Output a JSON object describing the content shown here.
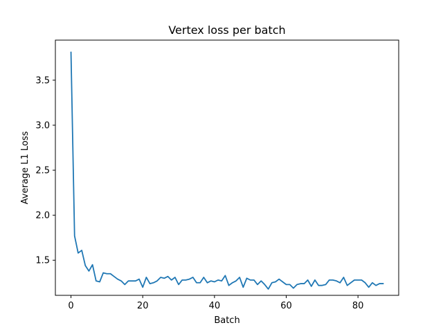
{
  "chart_data": {
    "type": "line",
    "title": "Vertex loss per batch",
    "xlabel": "Batch",
    "ylabel": "Average L1 Loss",
    "xlim": [
      -4.35,
      91.35
    ],
    "ylim": [
      1.11,
      3.945
    ],
    "xticks": [
      0,
      20,
      40,
      60,
      80
    ],
    "yticks": [
      1.5,
      2.0,
      2.5,
      3.0,
      3.5
    ],
    "xtick_labels": [
      "0",
      "20",
      "40",
      "60",
      "80"
    ],
    "ytick_labels": [
      "1.5",
      "2.0",
      "2.5",
      "3.0",
      "3.5"
    ],
    "grid": false,
    "legend": "none",
    "color": "#1f77b4",
    "series": [
      {
        "x": [
          0,
          1,
          2,
          3,
          4,
          5,
          6,
          7,
          8,
          9,
          10,
          11,
          12,
          13,
          14,
          15,
          16,
          17,
          18,
          19,
          20,
          21,
          22,
          23,
          24,
          25,
          26,
          27,
          28,
          29,
          30,
          31,
          32,
          33,
          34,
          35,
          36,
          37,
          38,
          39,
          40,
          41,
          42,
          43,
          44,
          45,
          46,
          47,
          48,
          49,
          50,
          51,
          52,
          53,
          54,
          55,
          56,
          57,
          58,
          59,
          60,
          61,
          62,
          63,
          64,
          65,
          66,
          67,
          68,
          69,
          70,
          71,
          72,
          73,
          74,
          75,
          76,
          77,
          78,
          79,
          80,
          81,
          82,
          83,
          84,
          85,
          86,
          87
        ],
        "values": [
          3.81,
          1.77,
          1.58,
          1.61,
          1.44,
          1.38,
          1.45,
          1.27,
          1.26,
          1.36,
          1.35,
          1.35,
          1.32,
          1.29,
          1.27,
          1.23,
          1.27,
          1.27,
          1.27,
          1.29,
          1.2,
          1.31,
          1.24,
          1.25,
          1.27,
          1.31,
          1.3,
          1.32,
          1.28,
          1.31,
          1.23,
          1.28,
          1.28,
          1.29,
          1.31,
          1.25,
          1.25,
          1.31,
          1.25,
          1.27,
          1.26,
          1.28,
          1.27,
          1.33,
          1.22,
          1.25,
          1.27,
          1.31,
          1.2,
          1.3,
          1.28,
          1.28,
          1.23,
          1.27,
          1.23,
          1.18,
          1.25,
          1.26,
          1.29,
          1.26,
          1.23,
          1.23,
          1.19,
          1.23,
          1.24,
          1.24,
          1.28,
          1.21,
          1.28,
          1.22,
          1.22,
          1.23,
          1.28,
          1.28,
          1.27,
          1.25,
          1.31,
          1.22,
          1.25,
          1.28,
          1.28,
          1.28,
          1.25,
          1.2,
          1.25,
          1.22,
          1.24,
          1.24
        ]
      }
    ]
  }
}
